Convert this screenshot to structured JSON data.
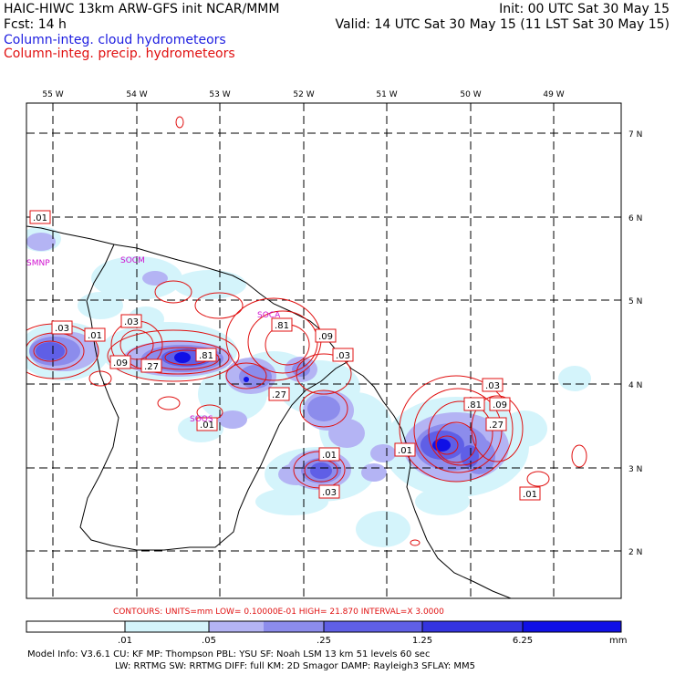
{
  "header": {
    "line1_left": "HAIC-HIWC 13km ARW-GFS init   NCAR/MMM",
    "line1_right": "Init: 00 UTC Sat 30 May 15",
    "line2_left": "Fcst:    14 h",
    "line2_right": "Valid: 14 UTC Sat 30 May 15 (11 LST Sat 30 May 15)",
    "line3": "Column-integ. cloud hydrometeors",
    "line4": "Column-integ. precip. hydrometeors"
  },
  "map": {
    "lon_labels": [
      "55 W",
      "54 W",
      "53 W",
      "52 W",
      "51 W",
      "50 W",
      "49 W"
    ],
    "lat_labels": [
      "7 N",
      "6 N",
      "5 N",
      "4 N",
      "3 N",
      "2 N"
    ],
    "stations": [
      "SMNP",
      "SOCM",
      "SOCA",
      "SOOS"
    ],
    "contour_labels": [
      ".01",
      ".03",
      ".01",
      ".03",
      ".09",
      ".27",
      ".81",
      ".81",
      ".09",
      ".03",
      ".27",
      ".01",
      ".01",
      ".03",
      ".01",
      ".03",
      ".81",
      ".09",
      ".27",
      ".01"
    ]
  },
  "footer": {
    "contours_line": "CONTOURS:  UNITS=mm  LOW= 0.10000E-01  HIGH=  21.870     INTERVAL=X  3.0000",
    "colorbar_labels": [
      ".01",
      ".05",
      ".25",
      "1.25",
      "6.25"
    ],
    "colorbar_units": "mm",
    "colorbar_colors": [
      "#ffffff",
      "#d4f4fb",
      "#b4b4f4",
      "#8c8cec",
      "#5f5fe6",
      "#3434e0",
      "#1010e6"
    ],
    "model_line1": "Model Info: V3.6.1    CU: KF       MP: Thompson     PBL: YSU       SF: Noah LSM    13 km   51 levels   60 sec",
    "model_line2": "LW: RRTMG    SW: RRTMG  DIFF: full    KM: 2D Smagor DAMP: Rayleigh3  SFLAY: MM5"
  }
}
